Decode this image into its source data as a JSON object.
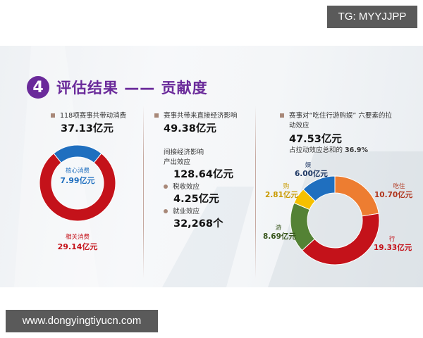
{
  "watermarks": {
    "tag": "TG: MYYJJPP",
    "url": "www.dongyingtiyucn.com"
  },
  "slide": {
    "section_number": "4",
    "title": "评估结果 —— 贡献度",
    "colors": {
      "title_purple": "#6a2a9a",
      "bullet_brown": "#a88878",
      "core_blue": "#1f6fbf",
      "related_red": "#c4121a"
    },
    "left": {
      "bullet": "118项赛事共带动消费",
      "total": "37.13亿元",
      "core_label": "核心消费",
      "core_value": "7.99亿元",
      "related_label": "相关消费",
      "related_value": "29.14亿元"
    },
    "middle": {
      "direct_bullet": "赛事共带来直接经济影响",
      "direct_value": "49.38亿元",
      "indirect_heading": "间接经济影响",
      "output_label": "产出效应",
      "output_value": "128.64亿元",
      "tax_label": "税收效应",
      "tax_value": "4.25亿元",
      "jobs_label": "就业效应",
      "jobs_value": "32,268个"
    },
    "right": {
      "bullet_line1": "赛事对“吃住行游购娱” 六要素的拉",
      "bullet_line2": "动效应",
      "total": "47.53亿元",
      "share_prefix": "占拉动效应总和的 ",
      "share_value": "36.9%",
      "labels": {
        "chizhu": "吃住",
        "chizhu_value": "10.70亿元",
        "xing": "行",
        "xing_value": "19.33亿元",
        "you": "游",
        "you_value": "8.69亿元",
        "gou": "购",
        "gou_value": "2.81亿元",
        "yu": "娱",
        "yu_value": "6.00亿元"
      }
    }
  },
  "chart_data": [
    {
      "type": "pie",
      "variant": "donut",
      "title": "118项赛事共带动消费 37.13亿元",
      "categories": [
        "核心消费",
        "相关消费"
      ],
      "values": [
        7.99,
        29.14
      ],
      "unit": "亿元",
      "colors": [
        "#1f6fbf",
        "#c4121a"
      ],
      "legend": "inline labels"
    },
    {
      "type": "pie",
      "variant": "donut",
      "title": "赛事对“吃住行游购娱”六要素的拉动效应 47.53亿元",
      "categories": [
        "吃住",
        "行",
        "游",
        "购",
        "娱"
      ],
      "values": [
        10.7,
        19.33,
        8.69,
        2.81,
        6.0
      ],
      "unit": "亿元",
      "colors": [
        "#ed7d31",
        "#c4121a",
        "#548235",
        "#f5c000",
        "#1f6fbf"
      ],
      "annotation": "占拉动效应总和的 36.9%",
      "legend": "inline labels"
    }
  ]
}
